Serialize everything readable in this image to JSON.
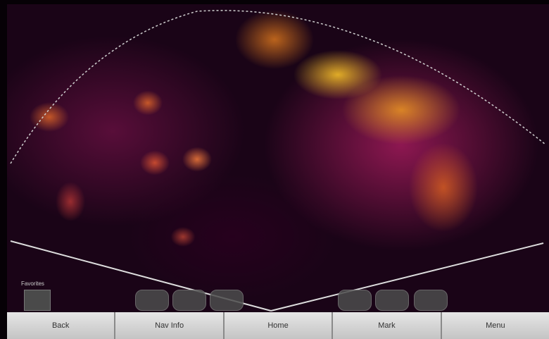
{
  "favorites_label": "Favorites",
  "buttons": [
    "Back",
    "Nav Info",
    "Home",
    "Mark",
    "Menu"
  ]
}
